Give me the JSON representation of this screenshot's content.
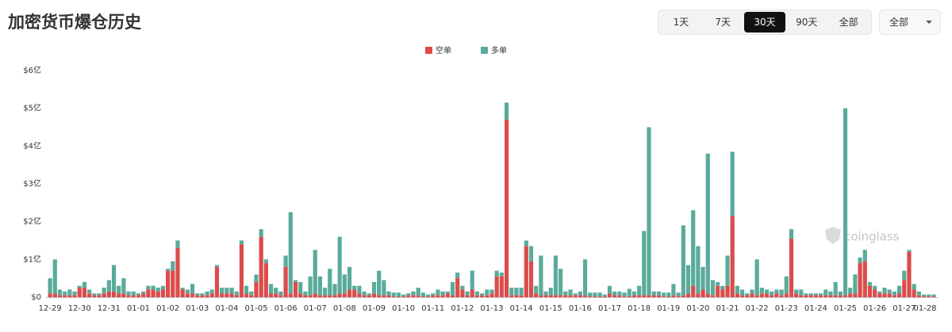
{
  "header": {
    "title": "加密货币爆仓历史",
    "range_buttons": [
      {
        "label": "1天",
        "active": false
      },
      {
        "label": "7天",
        "active": false
      },
      {
        "label": "30天",
        "active": true
      },
      {
        "label": "90天",
        "active": false
      },
      {
        "label": "全部",
        "active": false
      }
    ],
    "dropdown": "全部"
  },
  "chart_data": {
    "type": "stacked_bar",
    "watermark": "coinglass",
    "legend": "top-center",
    "grid": false,
    "ylim": [
      0,
      6
    ],
    "yticks": [
      {
        "value": 0,
        "label": "$0"
      },
      {
        "value": 1,
        "label": "$1亿"
      },
      {
        "value": 2,
        "label": "$2亿"
      },
      {
        "value": 3,
        "label": "$3亿"
      },
      {
        "value": 4,
        "label": "$4亿"
      },
      {
        "value": 5,
        "label": "$5亿"
      },
      {
        "value": 6,
        "label": "$6亿"
      }
    ],
    "categories": [
      "12-29",
      null,
      null,
      null,
      null,
      null,
      "12-30",
      null,
      null,
      null,
      null,
      null,
      "12-31",
      null,
      null,
      null,
      null,
      null,
      "01-01",
      null,
      null,
      null,
      null,
      null,
      "01-02",
      null,
      null,
      null,
      null,
      null,
      "01-03",
      null,
      null,
      null,
      null,
      null,
      "01-04",
      null,
      null,
      null,
      null,
      null,
      "01-05",
      null,
      null,
      null,
      null,
      null,
      "01-06",
      null,
      null,
      null,
      null,
      null,
      "01-07",
      null,
      null,
      null,
      null,
      null,
      "01-08",
      null,
      null,
      null,
      null,
      null,
      "01-09",
      null,
      null,
      null,
      null,
      null,
      "01-10",
      null,
      null,
      null,
      null,
      null,
      "01-11",
      null,
      null,
      null,
      null,
      null,
      "01-12",
      null,
      null,
      null,
      null,
      null,
      "01-13",
      null,
      null,
      null,
      null,
      null,
      "01-14",
      null,
      null,
      null,
      null,
      null,
      "01-15",
      null,
      null,
      null,
      null,
      null,
      "01-16",
      null,
      null,
      null,
      null,
      null,
      "01-17",
      null,
      null,
      null,
      null,
      null,
      "01-18",
      null,
      null,
      null,
      null,
      null,
      "01-19",
      null,
      null,
      null,
      null,
      null,
      "01-20",
      null,
      null,
      null,
      null,
      null,
      "01-21",
      null,
      null,
      null,
      null,
      null,
      "01-22",
      null,
      null,
      null,
      null,
      null,
      "01-23",
      null,
      null,
      null,
      null,
      null,
      "01-24",
      null,
      null,
      null,
      null,
      null,
      "01-25",
      null,
      null,
      null,
      null,
      null,
      "01-26",
      null,
      null,
      null,
      null,
      null,
      "01-27",
      null,
      null,
      null,
      null,
      null,
      "01-28"
    ],
    "series": [
      {
        "name": "空单",
        "color": "#dd4b4b",
        "values": [
          0.1,
          0.1,
          0.05,
          0.05,
          0.05,
          0.05,
          0.25,
          0.25,
          0.1,
          0.05,
          0.05,
          0.1,
          0.15,
          0.15,
          0.1,
          0.1,
          0.05,
          0.05,
          0.05,
          0.1,
          0.2,
          0.2,
          0.15,
          0.2,
          0.7,
          0.7,
          1.3,
          0.2,
          0.1,
          0.1,
          0.05,
          0.05,
          0.05,
          0.1,
          0.8,
          0.1,
          0.1,
          0.1,
          0.05,
          1.4,
          0.1,
          0.05,
          0.4,
          1.6,
          0.9,
          0.1,
          0.1,
          0.05,
          0.8,
          0.1,
          0.4,
          0.1,
          0.05,
          0.05,
          0.1,
          0.05,
          0.05,
          0.05,
          0.05,
          0.1,
          0.1,
          0.2,
          0.2,
          0.1,
          0.05,
          0.05,
          0.1,
          0.05,
          0.05,
          0.05,
          0.02,
          0.02,
          0.02,
          0.05,
          0.05,
          0.05,
          0.02,
          0.02,
          0.05,
          0.05,
          0.05,
          0.1,
          0.05,
          0.5,
          0.2,
          0.05,
          0.2,
          0.05,
          0.05,
          0.05,
          0.1,
          0.55,
          0.55,
          4.7,
          0.05,
          0.05,
          0.05,
          1.35,
          0.95,
          0.1,
          0.05,
          0.05,
          0.05,
          0.05,
          0.05,
          0.05,
          0.05,
          0.05,
          0.05,
          0.05,
          0.02,
          0.02,
          0.02,
          0.02,
          0.1,
          0.05,
          0.05,
          0.02,
          0.02,
          0.05,
          0.05,
          0.05,
          0.05,
          0.05,
          0.05,
          0.02,
          0.02,
          0.05,
          0.02,
          0.05,
          0.1,
          0.3,
          0.1,
          0.2,
          0.1,
          0.05,
          0.3,
          0.2,
          0.3,
          2.15,
          0.1,
          0.05,
          0.05,
          0.1,
          0.05,
          0.1,
          0.1,
          0.05,
          0.1,
          0.05,
          0.1,
          1.55,
          0.1,
          0.05,
          0.05,
          0.05,
          0.05,
          0.05,
          0.05,
          0.05,
          0.05,
          0.05,
          0.05,
          0.1,
          0.1,
          0.9,
          0.95,
          0.3,
          0.2,
          0.1,
          0.1,
          0.1,
          0.05,
          0.1,
          0.45,
          1.2,
          0.2,
          0.05,
          0.02,
          0.02,
          0.02
        ]
      },
      {
        "name": "多单",
        "color": "#5aab9b",
        "values": [
          0.4,
          0.9,
          0.15,
          0.1,
          0.15,
          0.1,
          0.05,
          0.15,
          0.1,
          0.05,
          0.05,
          0.15,
          0.3,
          0.7,
          0.2,
          0.4,
          0.1,
          0.1,
          0.05,
          0.05,
          0.1,
          0.1,
          0.1,
          0.1,
          0.05,
          0.25,
          0.2,
          0.05,
          0.1,
          0.25,
          0.05,
          0.05,
          0.1,
          0.1,
          0.05,
          0.15,
          0.15,
          0.15,
          0.1,
          0.1,
          0.2,
          0.1,
          0.2,
          0.2,
          0.1,
          0.25,
          0.15,
          0.1,
          0.3,
          2.15,
          0.05,
          0.3,
          0.1,
          0.5,
          1.15,
          0.5,
          0.2,
          0.7,
          0.3,
          1.5,
          0.5,
          0.6,
          0.1,
          0.2,
          0.1,
          0.05,
          0.3,
          0.65,
          0.4,
          0.1,
          0.1,
          0.1,
          0.05,
          0.05,
          0.1,
          0.2,
          0.1,
          0.05,
          0.05,
          0.15,
          0.1,
          0.05,
          0.35,
          0.15,
          0.1,
          0.1,
          0.5,
          0.1,
          0.05,
          0.15,
          0.1,
          0.15,
          0.1,
          0.45,
          0.2,
          0.2,
          0.2,
          0.15,
          0.4,
          0.2,
          1.05,
          0.1,
          0.2,
          1.05,
          0.7,
          0.1,
          0.15,
          0.05,
          0.1,
          0.95,
          0.1,
          0.1,
          0.1,
          0.05,
          0.2,
          0.1,
          0.1,
          0.1,
          0.2,
          0.1,
          0.25,
          1.7,
          4.45,
          0.1,
          0.1,
          0.1,
          0.1,
          0.3,
          0.1,
          1.85,
          0.75,
          2.0,
          1.25,
          0.6,
          3.7,
          0.4,
          0.1,
          0.1,
          0.8,
          1.7,
          0.2,
          0.15,
          0.05,
          0.1,
          0.95,
          0.15,
          0.1,
          0.1,
          0.1,
          0.15,
          0.45,
          0.25,
          0.1,
          0.15,
          0.05,
          0.05,
          0.05,
          0.05,
          0.15,
          0.1,
          0.35,
          0.1,
          4.95,
          0.15,
          0.5,
          0.15,
          0.3,
          0.1,
          0.1,
          0.05,
          0.15,
          0.1,
          0.1,
          0.2,
          0.25,
          0.05,
          0.15,
          0.1,
          0.05,
          0.05,
          0.05
        ]
      }
    ]
  }
}
